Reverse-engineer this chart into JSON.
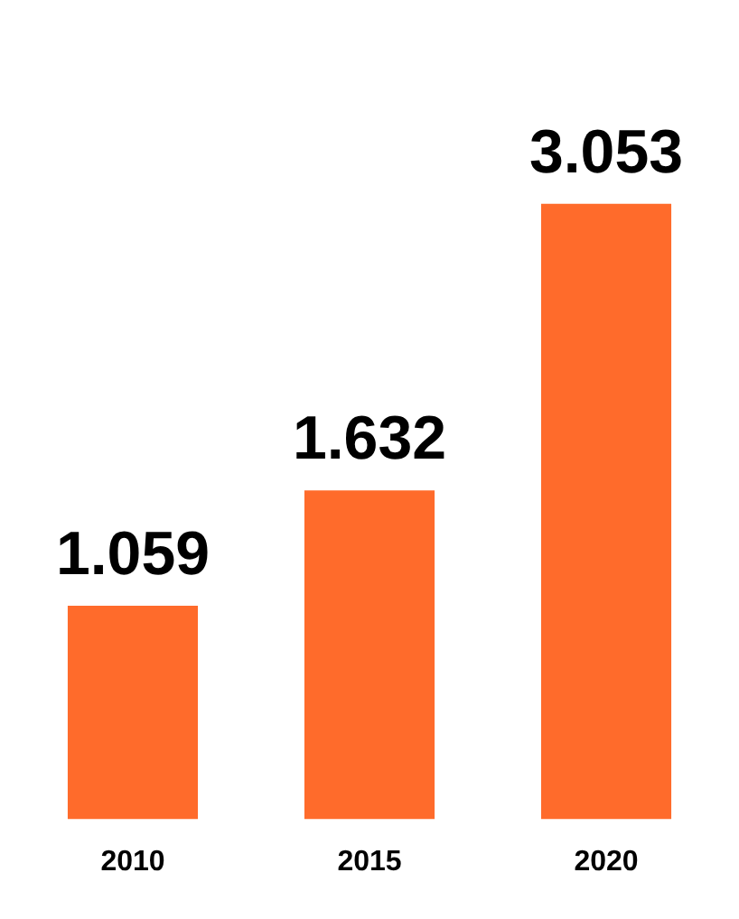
{
  "chart_data": {
    "type": "bar",
    "categories": [
      "2010",
      "2015",
      "2020"
    ],
    "values": [
      1.059,
      1.632,
      3.053
    ],
    "color": "#ff6b2b",
    "data_labels": true,
    "grid": false,
    "legend": false,
    "tick_labels": "x"
  }
}
